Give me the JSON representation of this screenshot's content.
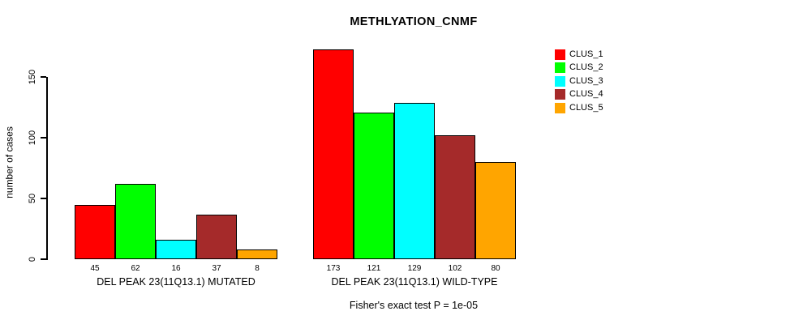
{
  "page": {
    "background": "#FFFFFF"
  },
  "chart_data": {
    "type": "bar",
    "title": "METHLYATION_CNMF",
    "ylabel": "number of cases",
    "xlabel": "",
    "categories": [
      "DEL PEAK 23(11Q13.1) MUTATED",
      "DEL PEAK 23(11Q13.1) WILD-TYPE"
    ],
    "series": [
      {
        "name": "CLUS_1",
        "color": "#FF0000",
        "values": [
          45,
          173
        ]
      },
      {
        "name": "CLUS_2",
        "color": "#00FF00",
        "values": [
          62,
          121
        ]
      },
      {
        "name": "CLUS_3",
        "color": "#00FFFF",
        "values": [
          16,
          129
        ]
      },
      {
        "name": "CLUS_4",
        "color": "#A52A2A",
        "values": [
          37,
          102
        ]
      },
      {
        "name": "CLUS_5",
        "color": "#FFA500",
        "values": [
          8,
          80
        ]
      }
    ],
    "yticks": [
      0,
      50,
      100,
      150
    ],
    "ylim": [
      0,
      175
    ],
    "grid": false,
    "legend_position": "right-top",
    "bar_value_labels": true,
    "bar_border_color": "#000000",
    "axis_color": "#000000",
    "annotation": "Fisher's exact test P = 1e-05"
  }
}
